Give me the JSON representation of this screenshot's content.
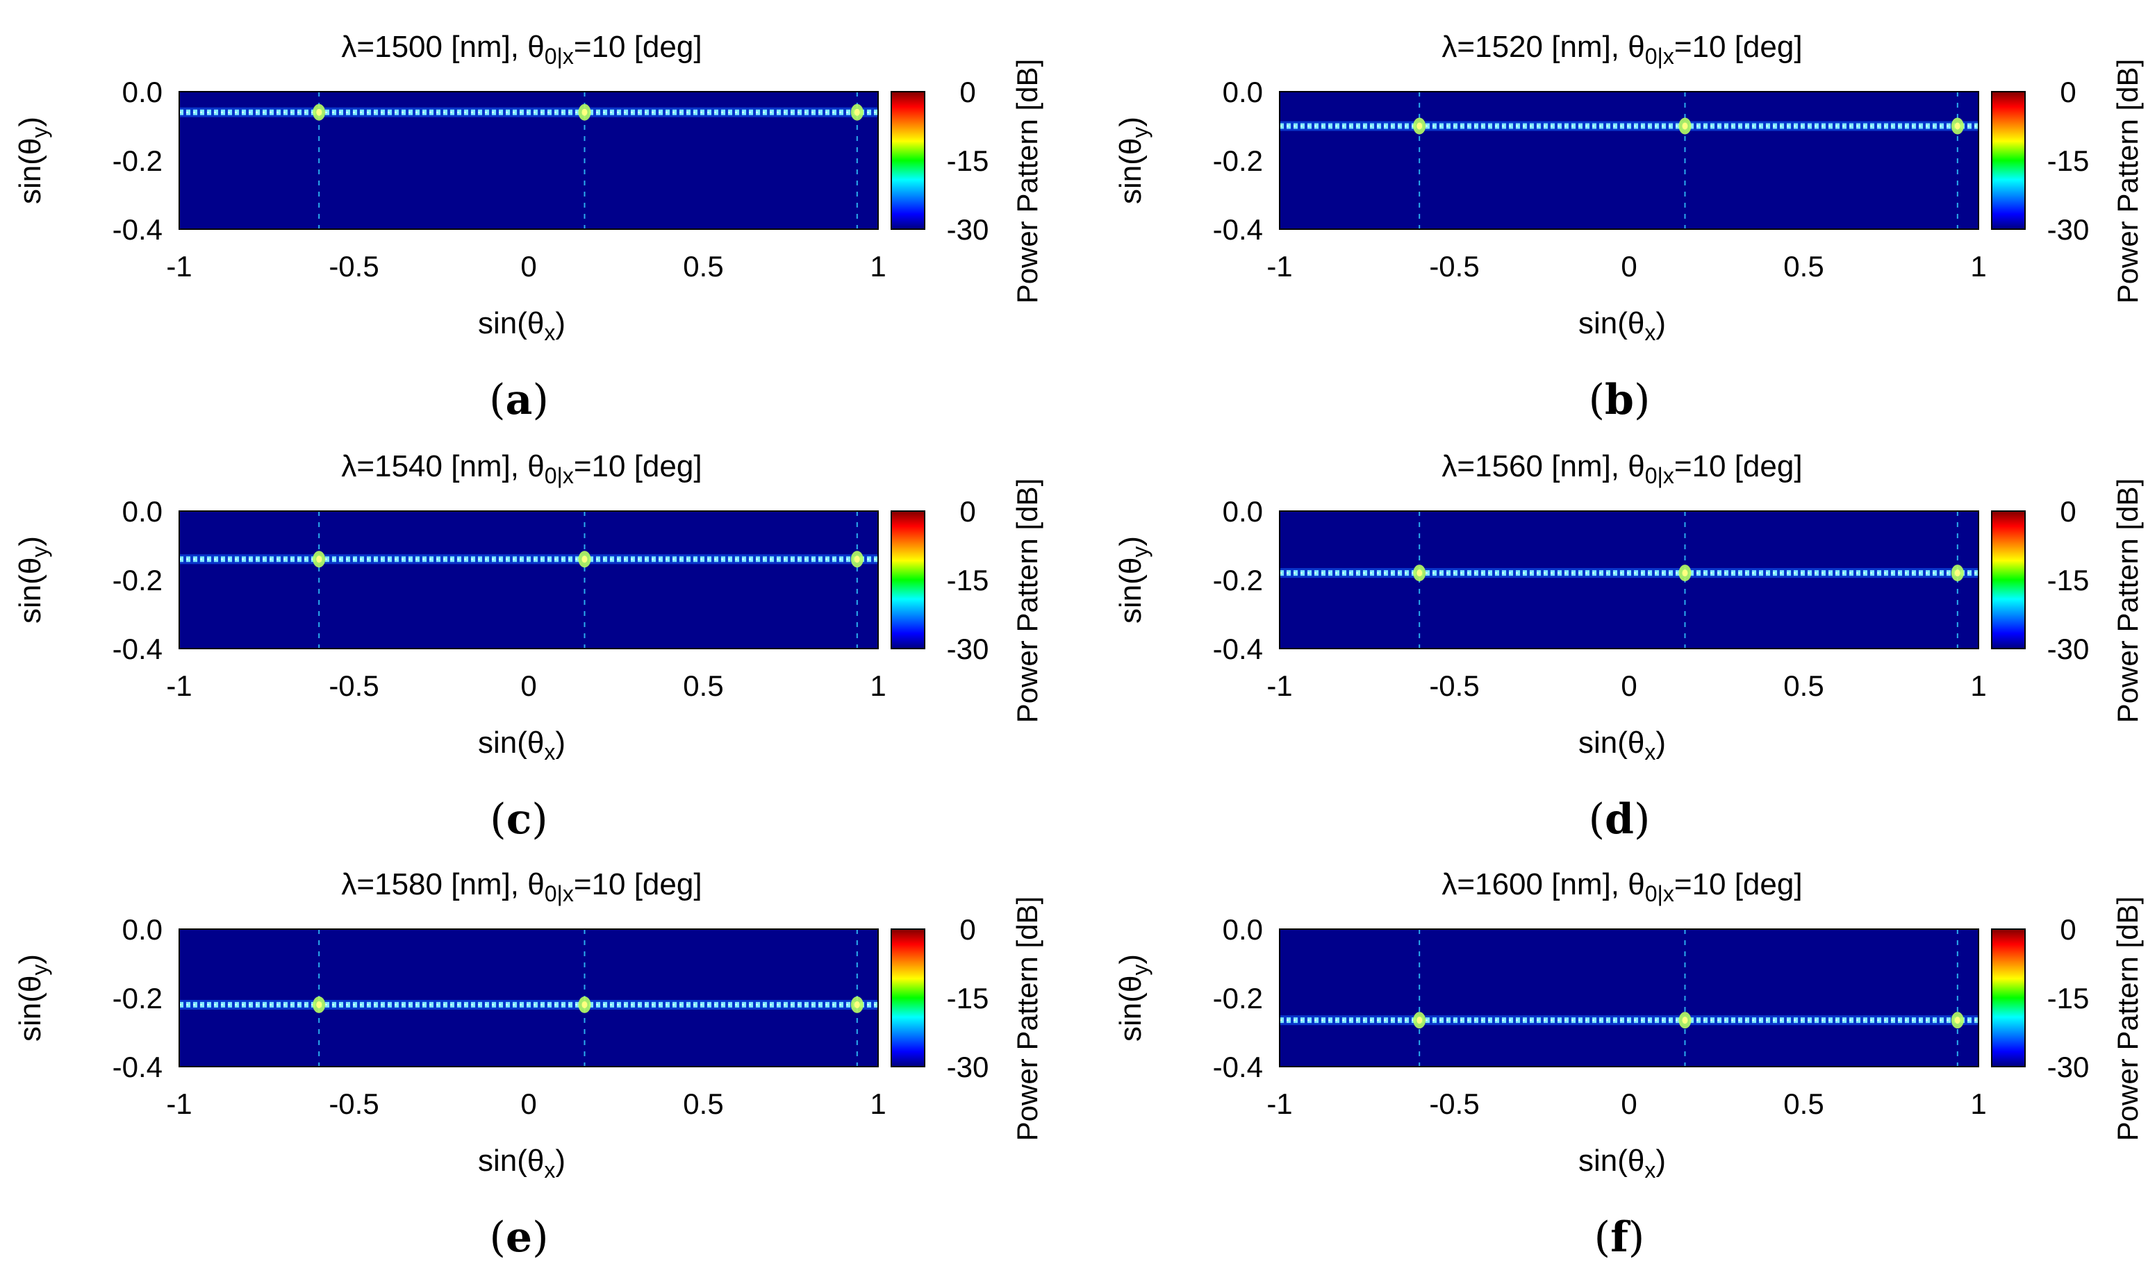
{
  "figure": {
    "panels": [
      {
        "caption_letter": "a",
        "chart_data": {
          "type": "heatmap",
          "wavelength": "1500",
          "title_parts": [
            "λ=1500 [nm], θ",
            "0|x",
            "=10 [deg]"
          ],
          "xlabel": [
            "sin(θ",
            "x",
            ")"
          ],
          "ylabel": [
            "sin(θ",
            "y",
            ")"
          ],
          "colorbar_label": "Power Pattern [dB]",
          "xlim": [
            -1,
            1
          ],
          "ylim": [
            -0.4,
            0.0
          ],
          "zlim": [
            -30,
            0
          ],
          "xticks": [
            "-1",
            "-0.5",
            "0",
            "0.5",
            "1"
          ],
          "yticks": [
            "0.0",
            "-0.2",
            "-0.4"
          ],
          "cticks": [
            "0",
            "-15",
            "-30"
          ],
          "beam_row_sin_theta_y": -0.06,
          "grating_lobes_sin_theta_x": [
            -0.6,
            0.16,
            0.94
          ]
        }
      },
      {
        "caption_letter": "b",
        "chart_data": {
          "type": "heatmap",
          "wavelength": "1520",
          "title_parts": [
            "λ=1520 [nm], θ",
            "0|x",
            "=10 [deg]"
          ],
          "xlabel": [
            "sin(θ",
            "x",
            ")"
          ],
          "ylabel": [
            "sin(θ",
            "y",
            ")"
          ],
          "colorbar_label": "Power Pattern [dB]",
          "xlim": [
            -1,
            1
          ],
          "ylim": [
            -0.4,
            0.0
          ],
          "zlim": [
            -30,
            0
          ],
          "xticks": [
            "-1",
            "-0.5",
            "0",
            "0.5",
            "1"
          ],
          "yticks": [
            "0.0",
            "-0.2",
            "-0.4"
          ],
          "cticks": [
            "0",
            "-15",
            "-30"
          ],
          "beam_row_sin_theta_y": -0.1,
          "grating_lobes_sin_theta_x": [
            -0.6,
            0.16,
            0.94
          ]
        }
      },
      {
        "caption_letter": "c",
        "chart_data": {
          "type": "heatmap",
          "wavelength": "1540",
          "title_parts": [
            "λ=1540 [nm], θ",
            "0|x",
            "=10 [deg]"
          ],
          "xlabel": [
            "sin(θ",
            "x",
            ")"
          ],
          "ylabel": [
            "sin(θ",
            "y",
            ")"
          ],
          "colorbar_label": "Power Pattern [dB]",
          "xlim": [
            -1,
            1
          ],
          "ylim": [
            -0.4,
            0.0
          ],
          "zlim": [
            -30,
            0
          ],
          "xticks": [
            "-1",
            "-0.5",
            "0",
            "0.5",
            "1"
          ],
          "yticks": [
            "0.0",
            "-0.2",
            "-0.4"
          ],
          "cticks": [
            "0",
            "-15",
            "-30"
          ],
          "beam_row_sin_theta_y": -0.14,
          "grating_lobes_sin_theta_x": [
            -0.6,
            0.16,
            0.94
          ]
        }
      },
      {
        "caption_letter": "d",
        "chart_data": {
          "type": "heatmap",
          "wavelength": "1560",
          "title_parts": [
            "λ=1560 [nm], θ",
            "0|x",
            "=10 [deg]"
          ],
          "xlabel": [
            "sin(θ",
            "x",
            ")"
          ],
          "ylabel": [
            "sin(θ",
            "y",
            ")"
          ],
          "colorbar_label": "Power Pattern [dB]",
          "xlim": [
            -1,
            1
          ],
          "ylim": [
            -0.4,
            0.0
          ],
          "zlim": [
            -30,
            0
          ],
          "xticks": [
            "-1",
            "-0.5",
            "0",
            "0.5",
            "1"
          ],
          "yticks": [
            "0.0",
            "-0.2",
            "-0.4"
          ],
          "cticks": [
            "0",
            "-15",
            "-30"
          ],
          "beam_row_sin_theta_y": -0.18,
          "grating_lobes_sin_theta_x": [
            -0.6,
            0.16,
            0.94
          ]
        }
      },
      {
        "caption_letter": "e",
        "chart_data": {
          "type": "heatmap",
          "wavelength": "1580",
          "title_parts": [
            "λ=1580 [nm], θ",
            "0|x",
            "=10 [deg]"
          ],
          "xlabel": [
            "sin(θ",
            "x",
            ")"
          ],
          "ylabel": [
            "sin(θ",
            "y",
            ")"
          ],
          "colorbar_label": "Power Pattern [dB]",
          "xlim": [
            -1,
            1
          ],
          "ylim": [
            -0.4,
            0.0
          ],
          "zlim": [
            -30,
            0
          ],
          "xticks": [
            "-1",
            "-0.5",
            "0",
            "0.5",
            "1"
          ],
          "yticks": [
            "0.0",
            "-0.2",
            "-0.4"
          ],
          "cticks": [
            "0",
            "-15",
            "-30"
          ],
          "beam_row_sin_theta_y": -0.22,
          "grating_lobes_sin_theta_x": [
            -0.6,
            0.16,
            0.94
          ]
        }
      },
      {
        "caption_letter": "f",
        "chart_data": {
          "type": "heatmap",
          "wavelength": "1600",
          "title_parts": [
            "λ=1600 [nm], θ",
            "0|x",
            "=10 [deg]"
          ],
          "xlabel": [
            "sin(θ",
            "x",
            ")"
          ],
          "ylabel": [
            "sin(θ",
            "y",
            ")"
          ],
          "colorbar_label": "Power Pattern [dB]",
          "xlim": [
            -1,
            1
          ],
          "ylim": [
            -0.4,
            0.0
          ],
          "zlim": [
            -30,
            0
          ],
          "xticks": [
            "-1",
            "-0.5",
            "0",
            "0.5",
            "1"
          ],
          "yticks": [
            "0.0",
            "-0.2",
            "-0.4"
          ],
          "cticks": [
            "0",
            "-15",
            "-30"
          ],
          "beam_row_sin_theta_y": -0.265,
          "grating_lobes_sin_theta_x": [
            -0.6,
            0.16,
            0.94
          ]
        }
      }
    ],
    "colors": {
      "background_floor": "#00008b",
      "colormap": [
        "#000080",
        "#0000ff",
        "#00ffff",
        "#00ff00",
        "#ffff00",
        "#ff0000",
        "#800000"
      ]
    }
  }
}
